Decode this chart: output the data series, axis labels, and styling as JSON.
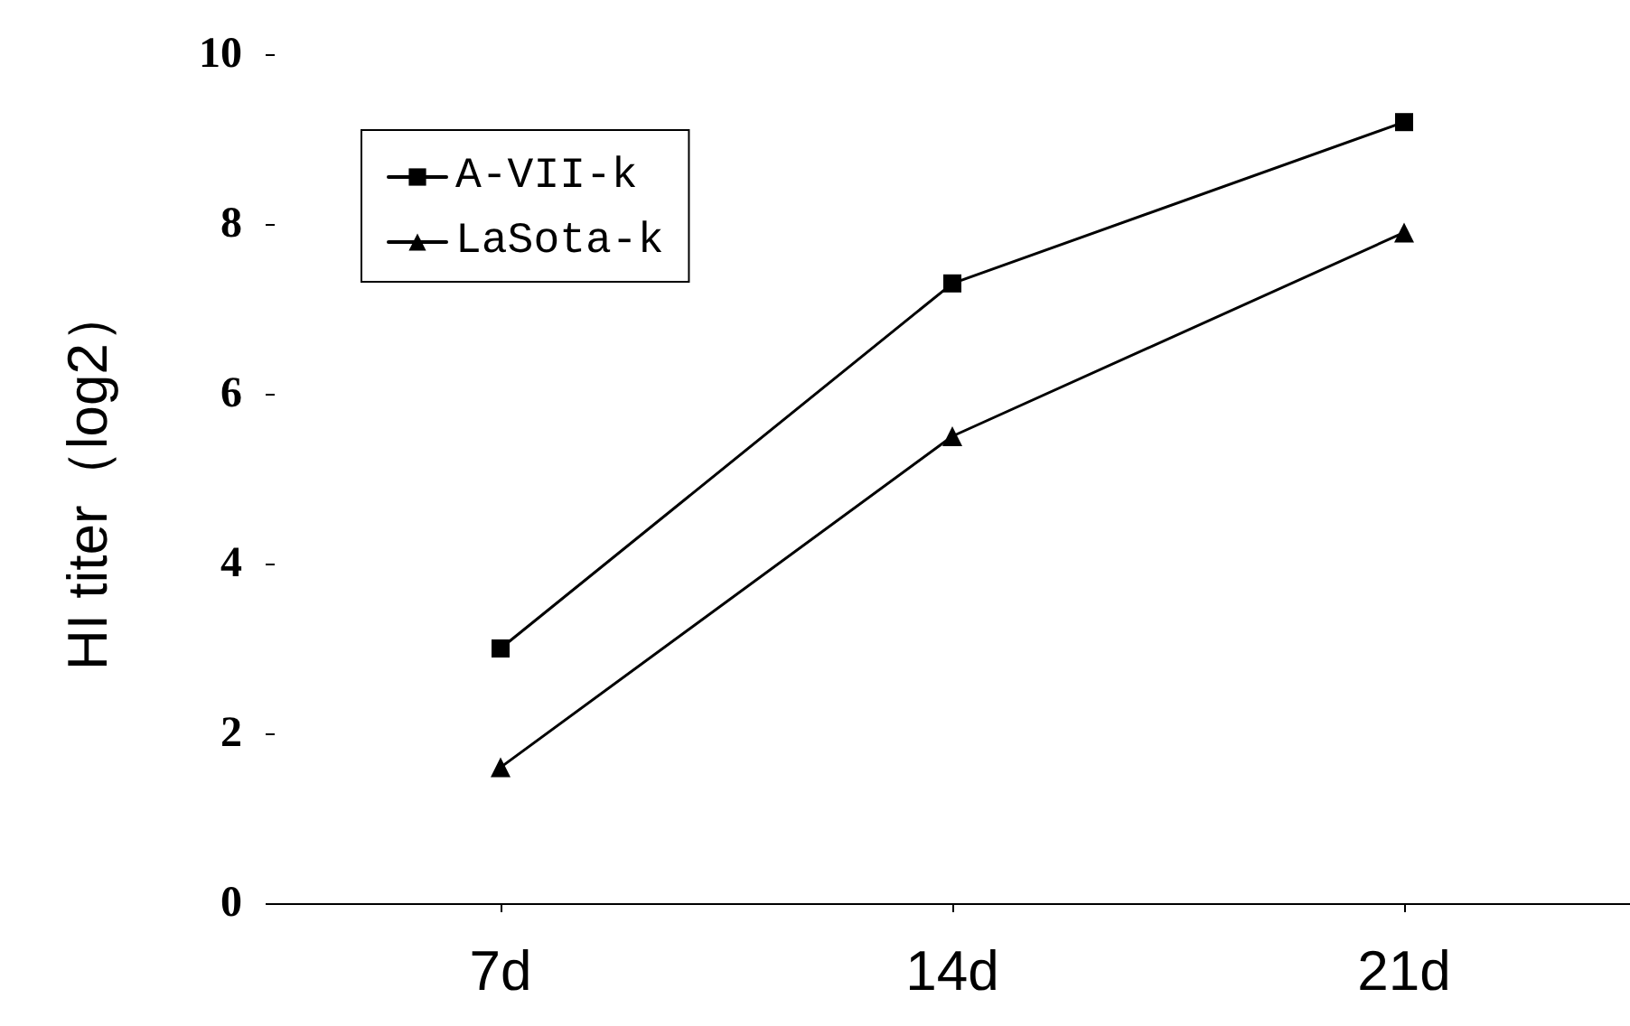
{
  "chart_data": {
    "type": "line",
    "ylabel": "HI titer（log2）",
    "categories": [
      "7d",
      "14d",
      "21d"
    ],
    "series": [
      {
        "name": "A-VII-k",
        "color": "#000000",
        "values": [
          3.0,
          7.3,
          9.2
        ],
        "marker": "square"
      },
      {
        "name": "LaSota-k",
        "color": "#000000",
        "values": [
          1.6,
          5.5,
          7.9
        ],
        "marker": "triangle"
      }
    ],
    "ylim": [
      0,
      10
    ],
    "yticks": [
      0,
      2,
      4,
      6,
      8,
      10
    ],
    "grid": false,
    "legend": "top left",
    "line_style": "solid"
  }
}
